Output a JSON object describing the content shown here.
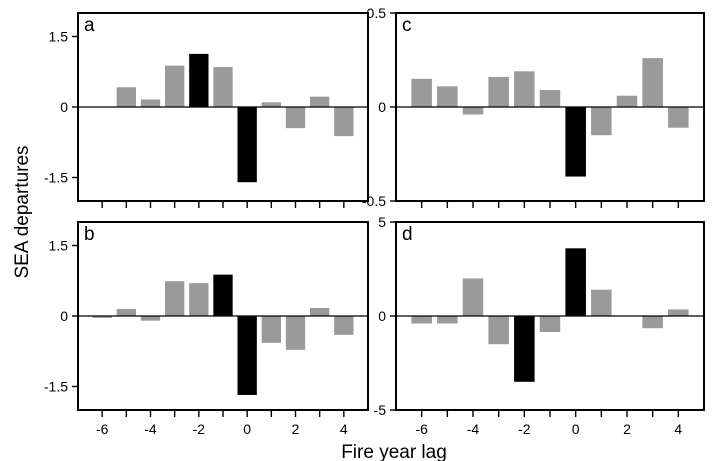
{
  "figure": {
    "ylabel": "SEA departures",
    "xlabel": "Fire year lag"
  },
  "colors": {
    "bar_gray": "#9a9a9a",
    "bar_black": "#000000",
    "frame": "#000000"
  },
  "chart_data": [
    {
      "type": "bar",
      "panel_label": "a",
      "x": [
        -6,
        -5,
        -4,
        -3,
        -2,
        -1,
        0,
        1,
        2,
        3,
        4,
        5
      ],
      "values": [
        0.0,
        0.42,
        0.16,
        0.88,
        1.13,
        0.85,
        -1.6,
        0.1,
        -0.45,
        0.22,
        -0.62,
        0.0
      ],
      "highlight_x": [
        -2,
        0
      ],
      "ylim": [
        -2.0,
        2.0
      ],
      "yticks": [
        -1.5,
        0,
        1.5
      ],
      "ytick_labels": [
        "-1.5",
        "0",
        "1.5"
      ],
      "xlim": [
        -7,
        5
      ],
      "xticks": [
        -6,
        -5,
        -4,
        -3,
        -2,
        -1,
        0,
        1,
        2,
        3,
        4
      ],
      "xtick_labels": [],
      "grid": false
    },
    {
      "type": "bar",
      "panel_label": "c",
      "x": [
        -6,
        -5,
        -4,
        -3,
        -2,
        -1,
        0,
        1,
        2,
        3,
        4,
        5
      ],
      "values": [
        0.15,
        0.11,
        -0.04,
        0.16,
        0.19,
        0.09,
        -0.37,
        -0.15,
        0.06,
        0.26,
        -0.11,
        0.0
      ],
      "highlight_x": [
        0
      ],
      "ylim": [
        -0.5,
        0.5
      ],
      "yticks": [
        -0.5,
        0,
        0.5
      ],
      "ytick_labels": [
        "-0.5",
        "0",
        "0.5"
      ],
      "xlim": [
        -7,
        5
      ],
      "xticks": [
        -6,
        -5,
        -4,
        -3,
        -2,
        -1,
        0,
        1,
        2,
        3,
        4
      ],
      "xtick_labels": [],
      "grid": false
    },
    {
      "type": "bar",
      "panel_label": "b",
      "x": [
        -6,
        -5,
        -4,
        -3,
        -2,
        -1,
        0,
        1,
        2,
        3,
        4,
        5
      ],
      "values": [
        -0.04,
        0.15,
        -0.1,
        0.74,
        0.7,
        0.88,
        -1.68,
        -0.57,
        -0.72,
        0.17,
        -0.4,
        0.0
      ],
      "highlight_x": [
        -1,
        0
      ],
      "ylim": [
        -2.0,
        2.0
      ],
      "yticks": [
        -1.5,
        0,
        1.5
      ],
      "ytick_labels": [
        "-1.5",
        "0",
        "1.5"
      ],
      "xlim": [
        -7,
        5
      ],
      "xticks": [
        -6,
        -5,
        -4,
        -3,
        -2,
        -1,
        0,
        1,
        2,
        3,
        4
      ],
      "xtick_labels": [
        "-6",
        "",
        "-4",
        "",
        "-2",
        "",
        "0",
        "",
        "2",
        "",
        "4"
      ],
      "grid": false
    },
    {
      "type": "bar",
      "panel_label": "d",
      "x": [
        -6,
        -5,
        -4,
        -3,
        -2,
        -1,
        0,
        1,
        2,
        3,
        4,
        5
      ],
      "values": [
        -0.4,
        -0.4,
        2.0,
        -1.5,
        -3.5,
        -0.85,
        3.6,
        1.4,
        0.0,
        -0.65,
        0.35,
        0.0
      ],
      "highlight_x": [
        -2,
        0
      ],
      "ylim": [
        -5,
        5
      ],
      "yticks": [
        -5,
        0,
        5
      ],
      "ytick_labels": [
        "-5",
        "0",
        "5"
      ],
      "xlim": [
        -7,
        5
      ],
      "xticks": [
        -6,
        -5,
        -4,
        -3,
        -2,
        -1,
        0,
        1,
        2,
        3,
        4
      ],
      "xtick_labels": [
        "-6",
        "",
        "-4",
        "",
        "-2",
        "",
        "0",
        "",
        "2",
        "",
        "4"
      ],
      "grid": false
    }
  ]
}
